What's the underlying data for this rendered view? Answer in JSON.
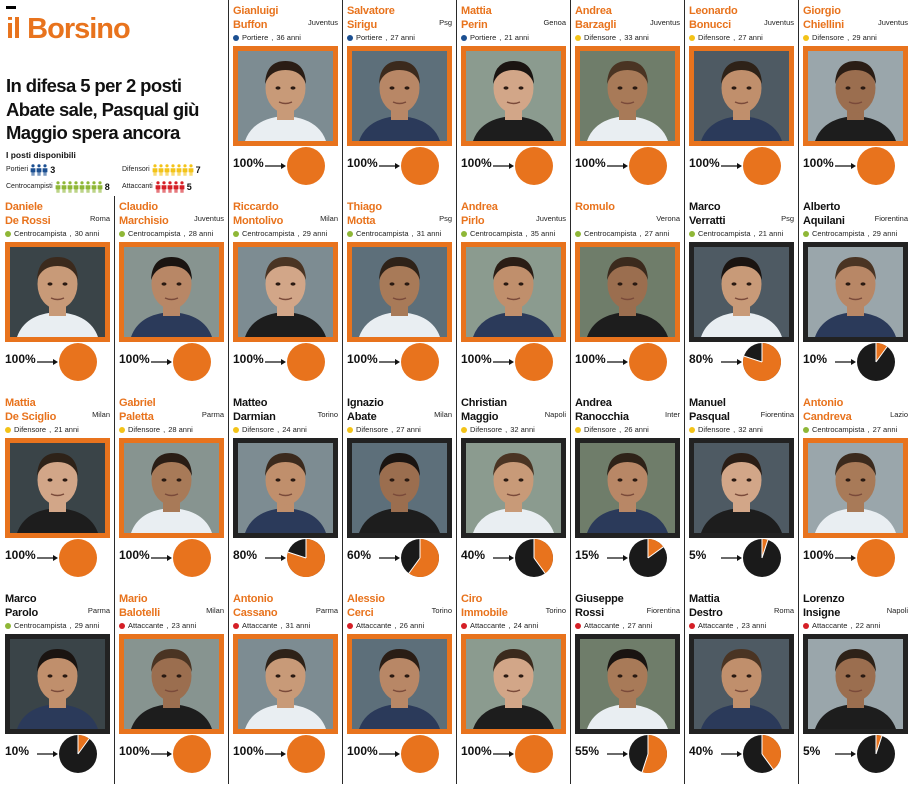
{
  "title": "il Borsino",
  "headline": [
    "In difesa 5 per 2 posti",
    "Abate sale, Pasqual giù",
    "Maggio spera ancora"
  ],
  "posti_title": "I posti disponibili",
  "posti": [
    {
      "label": "Portieri",
      "count": "3",
      "icons": 3,
      "color": "#1b4f91"
    },
    {
      "label": "Difensori",
      "count": "7",
      "icons": 7,
      "color": "#f3c318"
    },
    {
      "label": "Centrocampisti",
      "count": "8",
      "icons": 8,
      "color": "#8fb737"
    },
    {
      "label": "Attaccanti",
      "count": "5",
      "icons": 5,
      "color": "#d51f26"
    }
  ],
  "colors": {
    "orange": "#e8731d",
    "dark": "#222222",
    "text": "#111111"
  },
  "roles": {
    "Portiere": "#1b4f91",
    "Difensore": "#f3c318",
    "Centrocampista": "#8fb737",
    "Attaccante": "#d51f26"
  },
  "players": [
    {
      "first": "Gianluigi",
      "last": "Buffon",
      "club": "Juventus",
      "role": "Portiere",
      "age": "36 anni",
      "pct": "100%",
      "value": 100,
      "orange": true
    },
    {
      "first": "Salvatore",
      "last": "Sirigu",
      "club": "Psg",
      "role": "Portiere",
      "age": "27 anni",
      "pct": "100%",
      "value": 100,
      "orange": true
    },
    {
      "first": "Mattia",
      "last": "Perin",
      "club": "Genoa",
      "role": "Portiere",
      "age": "21 anni",
      "pct": "100%",
      "value": 100,
      "orange": true
    },
    {
      "first": "Andrea",
      "last": "Barzagli",
      "club": "Juventus",
      "role": "Difensore",
      "age": "33 anni",
      "pct": "100%",
      "value": 100,
      "orange": true
    },
    {
      "first": "Leonardo",
      "last": "Bonucci",
      "club": "Juventus",
      "role": "Difensore",
      "age": "27 anni",
      "pct": "100%",
      "value": 100,
      "orange": true
    },
    {
      "first": "Giorgio",
      "last": "Chiellini",
      "club": "Juventus",
      "role": "Difensore",
      "age": "29 anni",
      "pct": "100%",
      "value": 100,
      "orange": true
    },
    {
      "first": "Daniele",
      "last": "De Rossi",
      "club": "Roma",
      "role": "Centrocampista",
      "age": "30 anni",
      "pct": "100%",
      "value": 100,
      "orange": true
    },
    {
      "first": "Claudio",
      "last": "Marchisio",
      "club": "Juventus",
      "role": "Centrocampista",
      "age": "28 anni",
      "pct": "100%",
      "value": 100,
      "orange": true
    },
    {
      "first": "Riccardo",
      "last": "Montolivo",
      "club": "Milan",
      "role": "Centrocampista",
      "age": "29 anni",
      "pct": "100%",
      "value": 100,
      "orange": true
    },
    {
      "first": "Thiago",
      "last": "Motta",
      "club": "Psg",
      "role": "Centrocampista",
      "age": "31 anni",
      "pct": "100%",
      "value": 100,
      "orange": true
    },
    {
      "first": "Andrea",
      "last": "Pirlo",
      "club": "Juventus",
      "role": "Centrocampista",
      "age": "35 anni",
      "pct": "100%",
      "value": 100,
      "orange": true
    },
    {
      "first": "Romulo",
      "last": "",
      "club": "Verona",
      "role": "Centrocampista",
      "age": "27 anni",
      "pct": "100%",
      "value": 100,
      "orange": true
    },
    {
      "first": "Marco",
      "last": "Verratti",
      "club": "Psg",
      "role": "Centrocampista",
      "age": "21 anni",
      "pct": "80%",
      "value": 80,
      "orange": false
    },
    {
      "first": "Alberto",
      "last": "Aquilani",
      "club": "Fiorentina",
      "role": "Centrocampista",
      "age": "29 anni",
      "pct": "10%",
      "value": 10,
      "orange": false
    },
    {
      "first": "Mattia",
      "last": "De Sciglio",
      "club": "Milan",
      "role": "Difensore",
      "age": "21 anni",
      "pct": "100%",
      "value": 100,
      "orange": true
    },
    {
      "first": "Gabriel",
      "last": "Paletta",
      "club": "Parma",
      "role": "Difensore",
      "age": "28 anni",
      "pct": "100%",
      "value": 100,
      "orange": true
    },
    {
      "first": "Matteo",
      "last": "Darmian",
      "club": "Torino",
      "role": "Difensore",
      "age": "24 anni",
      "pct": "80%",
      "value": 80,
      "orange": false
    },
    {
      "first": "Ignazio",
      "last": "Abate",
      "club": "Milan",
      "role": "Difensore",
      "age": "27 anni",
      "pct": "60%",
      "value": 60,
      "orange": false
    },
    {
      "first": "Christian",
      "last": "Maggio",
      "club": "Napoli",
      "role": "Difensore",
      "age": "32 anni",
      "pct": "40%",
      "value": 40,
      "orange": false
    },
    {
      "first": "Andrea",
      "last": "Ranocchia",
      "club": "Inter",
      "role": "Difensore",
      "age": "26 anni",
      "pct": "15%",
      "value": 15,
      "orange": false
    },
    {
      "first": "Manuel",
      "last": "Pasqual",
      "club": "Fiorentina",
      "role": "Difensore",
      "age": "32 anni",
      "pct": "5%",
      "value": 5,
      "orange": false
    },
    {
      "first": "Antonio",
      "last": "Candreva",
      "club": "Lazio",
      "role": "Centrocampista",
      "age": "27 anni",
      "pct": "100%",
      "value": 100,
      "orange": true
    },
    {
      "first": "Marco",
      "last": "Parolo",
      "club": "Parma",
      "role": "Centrocampista",
      "age": "29 anni",
      "pct": "10%",
      "value": 10,
      "orange": false
    },
    {
      "first": "Mario",
      "last": "Balotelli",
      "club": "Milan",
      "role": "Attaccante",
      "age": "23 anni",
      "pct": "100%",
      "value": 100,
      "orange": true
    },
    {
      "first": "Antonio",
      "last": "Cassano",
      "club": "Parma",
      "role": "Attaccante",
      "age": "31 anni",
      "pct": "100%",
      "value": 100,
      "orange": true
    },
    {
      "first": "Alessio",
      "last": "Cerci",
      "club": "Torino",
      "role": "Attaccante",
      "age": "26 anni",
      "pct": "100%",
      "value": 100,
      "orange": true
    },
    {
      "first": "Ciro",
      "last": "Immobile",
      "club": "Torino",
      "role": "Attaccante",
      "age": "24 anni",
      "pct": "100%",
      "value": 100,
      "orange": true
    },
    {
      "first": "Giuseppe",
      "last": "Rossi",
      "club": "Fiorentina",
      "role": "Attaccante",
      "age": "27 anni",
      "pct": "55%",
      "value": 55,
      "orange": false
    },
    {
      "first": "Mattia",
      "last": "Destro",
      "club": "Roma",
      "role": "Attaccante",
      "age": "23 anni",
      "pct": "40%",
      "value": 40,
      "orange": false
    },
    {
      "first": "Lorenzo",
      "last": "Insigne",
      "club": "Napoli",
      "role": "Attaccante",
      "age": "22 anni",
      "pct": "5%",
      "value": 5,
      "orange": false
    }
  ]
}
